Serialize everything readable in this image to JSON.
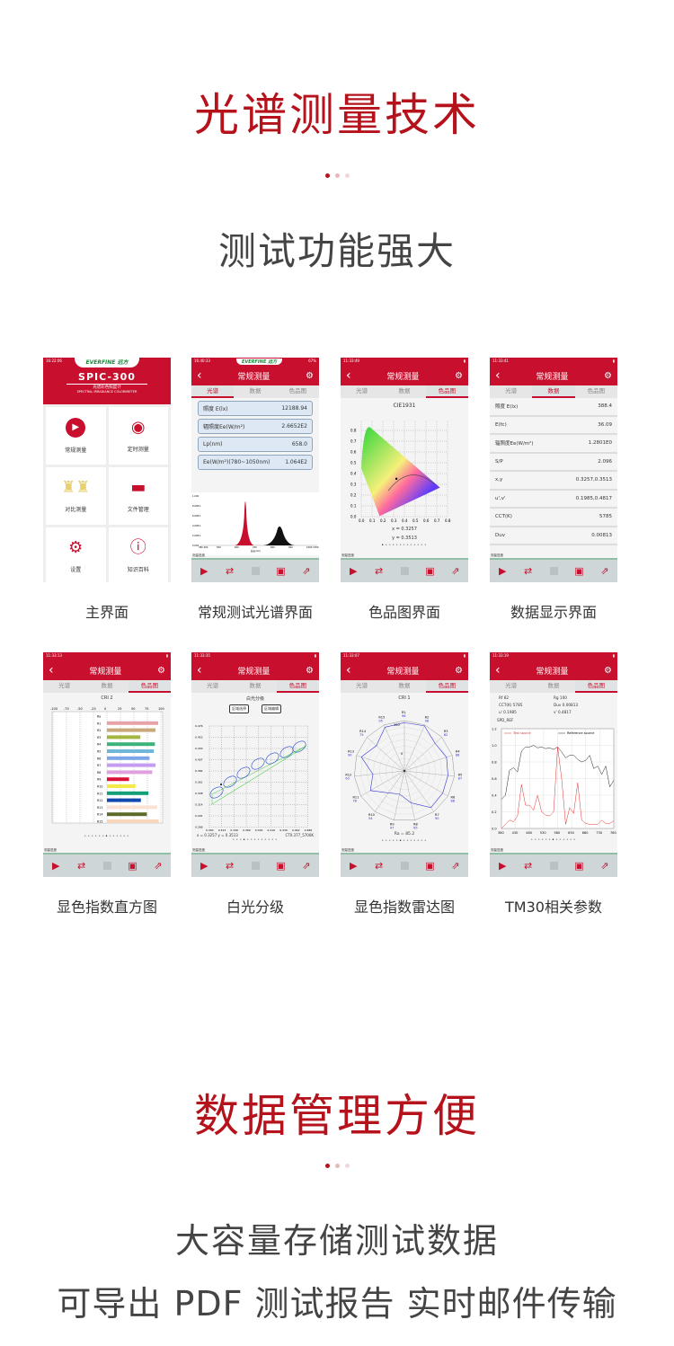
{
  "section1": {
    "title": "光谱测量技术",
    "subtitle": "测试功能强大"
  },
  "section2": {
    "title": "数据管理方便",
    "line1": "大容量存储测试数据",
    "line2": "可导出 PDF 测试报告  实时邮件传输"
  },
  "colors": {
    "brand_red": "#c8102e",
    "heading_red": "#b5121b"
  },
  "common": {
    "screen_title": "常规测量",
    "tabs": [
      "光谱",
      "数据",
      "色品图"
    ],
    "toolbar_icons": [
      "play-icon",
      "repeat-icon",
      "stop-icon",
      "save-icon",
      "share-icon"
    ],
    "brand": "EVERFINE 远方",
    "footer_label": "测量进度"
  },
  "screens": [
    {
      "caption": "主界面",
      "time": "16:22:06",
      "model": "SPIC-300",
      "model_cn": "光谱彩色照度计",
      "model_en": "SPECTRAL IRRADIANCE COLORIMETER",
      "tiles": [
        {
          "label": "常规测量",
          "icon": "play-circle-icon"
        },
        {
          "label": "定时测量",
          "icon": "timer-play-icon"
        },
        {
          "label": "对比测量",
          "icon": "lamps-icon"
        },
        {
          "label": "文件管理",
          "icon": "folder-icon"
        },
        {
          "label": "设置",
          "icon": "gear-icon"
        },
        {
          "label": "知识百科",
          "icon": "info-icon"
        }
      ]
    },
    {
      "caption": "常规测试光谱界面",
      "time": "16:40:33",
      "battery": "67%",
      "values": [
        {
          "k": "照度 E(lx)",
          "v": "12188.94"
        },
        {
          "k": "辐照度Ee(W/m²)",
          "v": "2.6652E2"
        },
        {
          "k": "Lp(nm)",
          "v": "658.0"
        },
        {
          "k": "Ee(W/m²)(780~1050nm)",
          "v": "1.064E2"
        }
      ],
      "y_ticks": [
        "1.000",
        "8.00E-1",
        "6.00E-1",
        "4.00E-1",
        "2.00E-1",
        "0.000"
      ],
      "x_ticks": [
        "380 400",
        "500",
        "600",
        "700",
        "800",
        "900",
        "1000 1050"
      ],
      "x_label": "波长(nm)"
    },
    {
      "caption": "色品图界面",
      "time": "11:33:49",
      "chart_title": "CIE1931",
      "x": "x = 0.3257",
      "y": "y = 0.3513",
      "ticks": [
        "0.0",
        "0.1",
        "0.2",
        "0.3",
        "0.4",
        "0.5",
        "0.6",
        "0.7",
        "0.8"
      ],
      "point": [
        0.3257,
        0.3513
      ]
    },
    {
      "caption": "数据显示界面",
      "time": "11:33:41",
      "rows": [
        {
          "k": "照度 E(lx)",
          "v": "388.4"
        },
        {
          "k": "E(fc)",
          "v": "36.09"
        },
        {
          "k": "辐照度Ee(W/m²)",
          "v": "1.2801E0"
        },
        {
          "k": "S/P",
          "v": "2.096"
        },
        {
          "k": "x,y",
          "v": "0.3257,0.3513"
        },
        {
          "k": "u',v'",
          "v": "0.1985,0.4817"
        },
        {
          "k": "CCT(K)",
          "v": "5785"
        },
        {
          "k": "Duv",
          "v": "0.00813"
        }
      ]
    },
    {
      "caption": "显色指数直方图",
      "time": "11:33:13",
      "chart_title": "CRI 2",
      "ticks": [
        "-100",
        "-75",
        "-50",
        "-25",
        "0",
        "25",
        "50",
        "75",
        "100"
      ],
      "bars": [
        {
          "n": "Ra",
          "v": 0,
          "c": "#ffffff"
        },
        {
          "n": "R1",
          "v": 95,
          "c": "#e8a3a8"
        },
        {
          "n": "R2",
          "v": 90,
          "c": "#c9a97a"
        },
        {
          "n": "R3",
          "v": 62,
          "c": "#a3b640"
        },
        {
          "n": "R4",
          "v": 89,
          "c": "#3cb37a"
        },
        {
          "n": "R5",
          "v": 87,
          "c": "#6fb6d8"
        },
        {
          "n": "R6",
          "v": 79,
          "c": "#7aa6e8"
        },
        {
          "n": "R7",
          "v": 90,
          "c": "#c39bef"
        },
        {
          "n": "R8",
          "v": 84,
          "c": "#e0a0e0"
        },
        {
          "n": "R9",
          "v": 41,
          "c": "#d8103a"
        },
        {
          "n": "R10",
          "v": 53,
          "c": "#f5e94a"
        },
        {
          "n": "R11",
          "v": 77,
          "c": "#11a07a"
        },
        {
          "n": "R12",
          "v": 63,
          "c": "#1048b0"
        },
        {
          "n": "R13",
          "v": 93,
          "c": "#fbe0d4"
        },
        {
          "n": "R14",
          "v": 74,
          "c": "#5c6b2c"
        },
        {
          "n": "R15",
          "v": 96,
          "c": "#f8d6bc"
        }
      ]
    },
    {
      "caption": "白光分级",
      "time": "11:33:35",
      "chart_title": "白光分级",
      "btn1": "区域选择",
      "btn2": "区域编辑",
      "xy": "x = 0.3257  y = 0.3513",
      "cct": "CT0.377_5700K",
      "y_ticks": [
        "0.476",
        "0.453",
        "0.430",
        "0.407",
        "0.384",
        "0.361",
        "0.338",
        "0.314",
        "0.291",
        "0.268"
      ],
      "x_ticks": [
        "0.300",
        "0.323",
        "0.346",
        "0.369",
        "0.393",
        "0.416",
        "0.439",
        "0.462",
        "0.486"
      ]
    },
    {
      "caption": "显色指数雷达图",
      "time": "11:33:07",
      "chart_title": "CRI 1",
      "ra": "Ra = 85.2",
      "scale": [
        "100",
        "0"
      ],
      "points": [
        {
          "n": "R1",
          "v": 96
        },
        {
          "n": "R2",
          "v": 98
        },
        {
          "n": "R3",
          "v": 82
        },
        {
          "n": "R4",
          "v": 88
        },
        {
          "n": "R5",
          "v": 87
        },
        {
          "n": "R6",
          "v": 88
        },
        {
          "n": "R7",
          "v": 90
        },
        {
          "n": "R8",
          "v": 65
        },
        {
          "n": "R9",
          "v": 47
        },
        {
          "n": "R10",
          "v": 54
        },
        {
          "n": "R11",
          "v": 78
        },
        {
          "n": "R12",
          "v": 63
        },
        {
          "n": "R13",
          "v": 90
        },
        {
          "n": "R14",
          "v": 75
        },
        {
          "n": "R15",
          "v": 95
        }
      ]
    },
    {
      "caption": "TM30相关参数",
      "time": "11:33:19",
      "params": [
        {
          "k": "Rf",
          "v": "82"
        },
        {
          "k": "Rg",
          "v": "100"
        },
        {
          "k": "CCT(K)",
          "v": "5785"
        },
        {
          "k": "Duv",
          "v": "0.00813"
        },
        {
          "k": "u'",
          "v": "0.1985"
        },
        {
          "k": "v'",
          "v": "0.4817"
        }
      ],
      "spd_label": "SPD_REF",
      "legend": [
        "Test source",
        "Reference source"
      ],
      "y_ticks": [
        "1.2",
        "1.0",
        "0.8",
        "0.6",
        "0.4",
        "0.2",
        "0.0"
      ],
      "x_ticks": [
        "380",
        "430",
        "480",
        "530",
        "580",
        "630",
        "680",
        "730",
        "780"
      ],
      "test": [
        0.0,
        0.05,
        0.1,
        0.08,
        0.15,
        0.53,
        0.28,
        0.28,
        0.22,
        0.4,
        0.2,
        0.16,
        0.15,
        0.2,
        0.98,
        0.6,
        0.05,
        0.25,
        0.18,
        0.55,
        0.1,
        0.06,
        0.05,
        0.05,
        0.05,
        0.1,
        0.06,
        0.06,
        0.09
      ],
      "reference": [
        0.35,
        0.4,
        0.7,
        0.73,
        0.68,
        0.93,
        0.98,
        0.98,
        1.0,
        0.97,
        0.98,
        0.96,
        0.97,
        0.95,
        0.98,
        0.92,
        0.85,
        0.88,
        0.88,
        0.83,
        0.8,
        0.82,
        0.88,
        0.72,
        0.75,
        0.65,
        0.75,
        0.5,
        0.58
      ]
    }
  ]
}
